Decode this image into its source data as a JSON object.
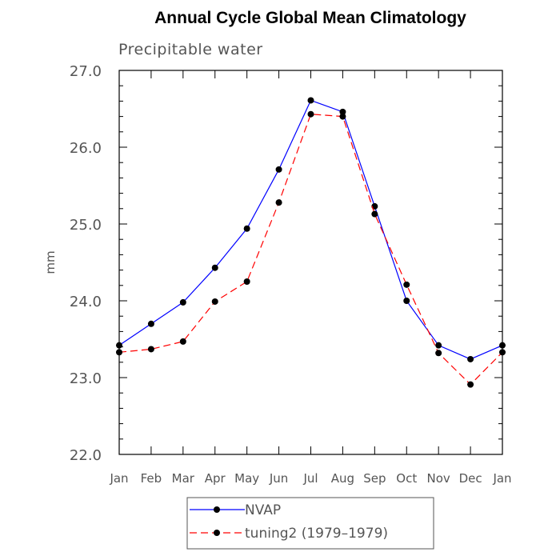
{
  "chart_data": {
    "type": "line",
    "title": "Annual Cycle Global Mean Climatology",
    "subtitle": "Precipitable water",
    "xlabel": "",
    "ylabel": "mm",
    "categories": [
      "Jan",
      "Feb",
      "Mar",
      "Apr",
      "May",
      "Jun",
      "Jul",
      "Aug",
      "Sep",
      "Oct",
      "Nov",
      "Dec",
      "Jan"
    ],
    "ylim": [
      22.0,
      27.0
    ],
    "yticks": [
      "22.0",
      "23.0",
      "24.0",
      "25.0",
      "26.0",
      "27.0"
    ],
    "grid": false,
    "legend_position": "bottom",
    "series": [
      {
        "name": "NVAP",
        "color": "#0000ff",
        "dash": "solid",
        "values": [
          23.42,
          23.7,
          23.98,
          24.43,
          24.94,
          25.71,
          26.61,
          26.46,
          25.23,
          24.0,
          23.42,
          23.24,
          23.42
        ]
      },
      {
        "name": "tuning2 (1979–1979)",
        "color": "#ff0000",
        "dash": "dashed",
        "values": [
          23.33,
          23.37,
          23.47,
          23.99,
          24.25,
          25.28,
          26.43,
          26.4,
          25.13,
          24.21,
          23.32,
          22.91,
          23.33
        ]
      }
    ]
  }
}
